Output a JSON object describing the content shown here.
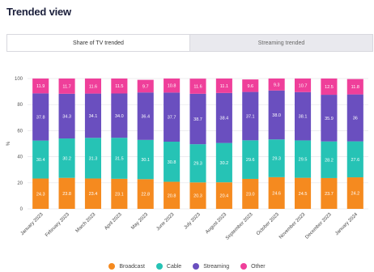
{
  "page": {
    "title": "Trended view"
  },
  "tabs": [
    {
      "label": "Share of TV trended",
      "active": true
    },
    {
      "label": "Streaming trended",
      "active": false
    }
  ],
  "colors": {
    "Broadcast": "#f58a1f",
    "Cable": "#26c3b5",
    "Streaming": "#6a4fbf",
    "Other": "#ef3f9a"
  },
  "chart_data": {
    "type": "bar",
    "stacked": true,
    "ylabel": "%",
    "ylim": [
      0,
      100
    ],
    "yticks": [
      0,
      20,
      40,
      60,
      80,
      100
    ],
    "categories": [
      "January 2023",
      "February 2023",
      "March 2023",
      "April 2023",
      "May 2023",
      "June 2023",
      "July 2023",
      "August 2023",
      "September 2023",
      "October 2023",
      "November 2023",
      "December 2023",
      "January 2024"
    ],
    "series": [
      {
        "name": "Broadcast",
        "values": [
          24.3,
          23.8,
          23.4,
          23.1,
          22.8,
          20.8,
          20.3,
          20.4,
          23.0,
          24.6,
          24.5,
          23.7,
          24.2
        ]
      },
      {
        "name": "Cable",
        "values": [
          30.4,
          30.2,
          31.3,
          31.5,
          30.1,
          30.8,
          29.3,
          30.2,
          29.6,
          29.3,
          29.5,
          28.2,
          27.6
        ]
      },
      {
        "name": "Streaming",
        "values": [
          37.8,
          34.3,
          34.1,
          34.0,
          36.4,
          37.7,
          38.7,
          38.4,
          37.1,
          38.0,
          38.1,
          35.9,
          36.0
        ]
      },
      {
        "name": "Other",
        "values": [
          11.9,
          11.7,
          11.6,
          11.5,
          9.7,
          10.8,
          11.6,
          11.1,
          9.6,
          9.3,
          10.7,
          12.5,
          11.8
        ]
      }
    ],
    "labels": {
      "Broadcast": [
        "24.3",
        "23.8",
        "23.4",
        "23.1",
        "22.8",
        "20.8",
        "20.3",
        "20.4",
        "23.0",
        "24.6",
        "24.5",
        "23.7",
        "24.2"
      ],
      "Cable": [
        "30.4",
        "30.2",
        "31.3",
        "31.5",
        "30.1",
        "30.8",
        "29.3",
        "30.2",
        "29.6",
        "29.3",
        "29.5",
        "28.2",
        "27.6"
      ],
      "Streaming": [
        "37.8",
        "34.3",
        "34.1",
        "34.0",
        "36.4",
        "37.7",
        "38.7",
        "38.4",
        "37.1",
        "38.0",
        "38.1",
        "35.9",
        "36"
      ],
      "Other": [
        "11.9",
        "11.7",
        "11.6",
        "11.5",
        "9.7",
        "10.8",
        "11.6",
        "11.1",
        "9.6",
        "9.3",
        "10.7",
        "12.5",
        "11.8"
      ]
    },
    "grid": true,
    "legend_position": "bottom"
  }
}
